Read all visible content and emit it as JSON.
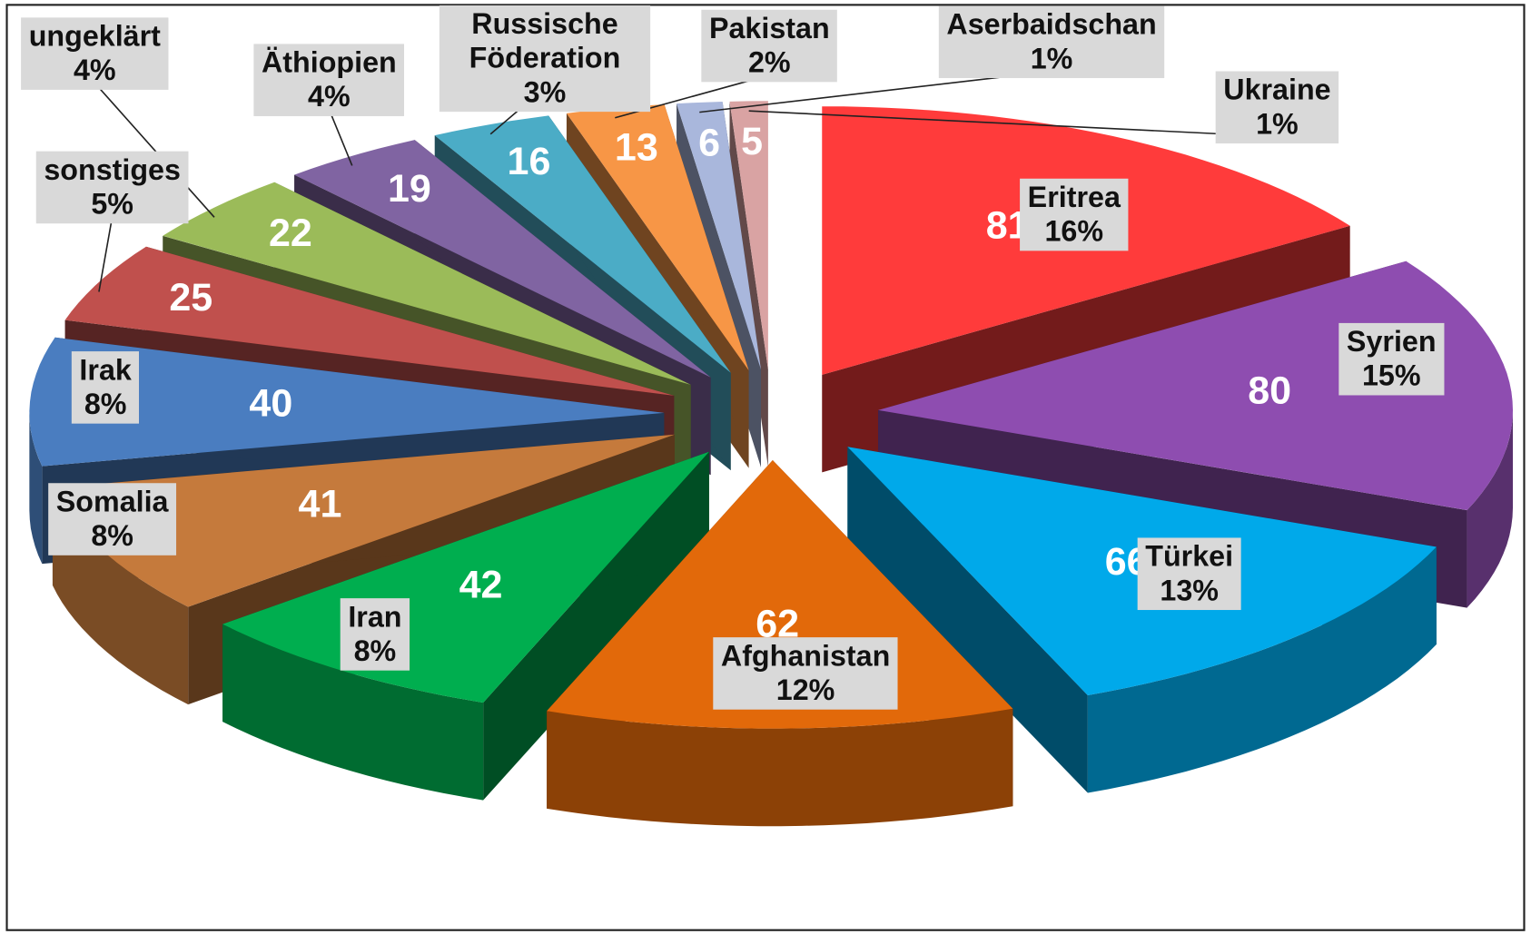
{
  "chart_data": {
    "type": "pie3d",
    "categories": [
      "Eritrea",
      "Syrien",
      "Türkei",
      "Afghanistan",
      "Iran",
      "Somalia",
      "Irak",
      "sonstiges",
      "ungeklärt",
      "Äthiopien",
      "Russische Föderation",
      "Pakistan",
      "Aserbaidschan",
      "Ukraine"
    ],
    "values": [
      81,
      80,
      66,
      62,
      42,
      41,
      40,
      25,
      22,
      19,
      16,
      13,
      6,
      5
    ],
    "percent_labels": [
      "16%",
      "15%",
      "13%",
      "12%",
      "8%",
      "8%",
      "8%",
      "5%",
      "4%",
      "4%",
      "3%",
      "2%",
      "1%",
      "1%"
    ],
    "colors": [
      "#ff3b3b",
      "#8e4db0",
      "#00a9ea",
      "#e2690a",
      "#00ae4f",
      "#c57a3c",
      "#4a7dc0",
      "#c0504d",
      "#9bbb59",
      "#8064a2",
      "#4bacc6",
      "#f79646",
      "#a9b7dc",
      "#d9a3a3"
    ]
  }
}
